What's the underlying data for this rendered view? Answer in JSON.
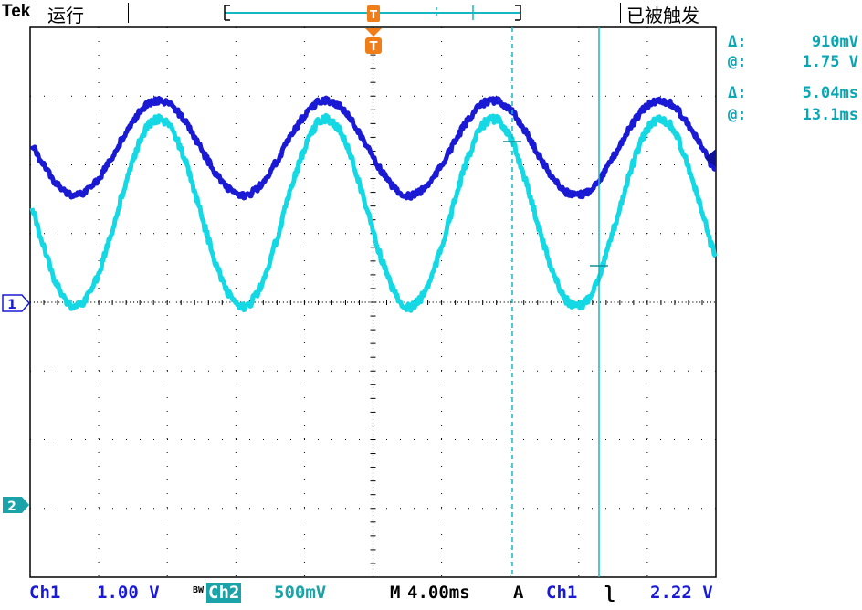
{
  "header": {
    "brand": "Tek",
    "run_state": "运行",
    "trigger_state": "已被触发",
    "trigger_marker": "T"
  },
  "cursor_readouts": {
    "voltage": {
      "delta_label": "Δ:",
      "delta_value": "910mV",
      "at_label": "@:",
      "at_value": "1.75 V"
    },
    "time": {
      "delta_label": "Δ:",
      "delta_value": "5.04ms",
      "at_label": "@:",
      "at_value": "13.1ms"
    }
  },
  "channels": {
    "ch1_marker": "1",
    "ch2_marker": "2",
    "ch1_color": "#1a1ad4",
    "ch2_color": "#14d8e4"
  },
  "status_bar": {
    "ch1_label": "Ch1",
    "ch1_scale": "1.00 V",
    "bw_label": "BW",
    "ch2_label": "Ch2",
    "ch2_scale": "500mV",
    "timebase_label": "M",
    "timebase_value": "4.00ms",
    "trigger_mode": "A",
    "trigger_source": "Ch1",
    "trigger_slope": "falling-edge-icon",
    "trigger_slope_glyph": "ʅ",
    "trigger_level": "2.22 V"
  },
  "colors": {
    "readout": "#0aa6b4",
    "grid": "#000000",
    "trigger_orange": "#f07d18"
  }
}
